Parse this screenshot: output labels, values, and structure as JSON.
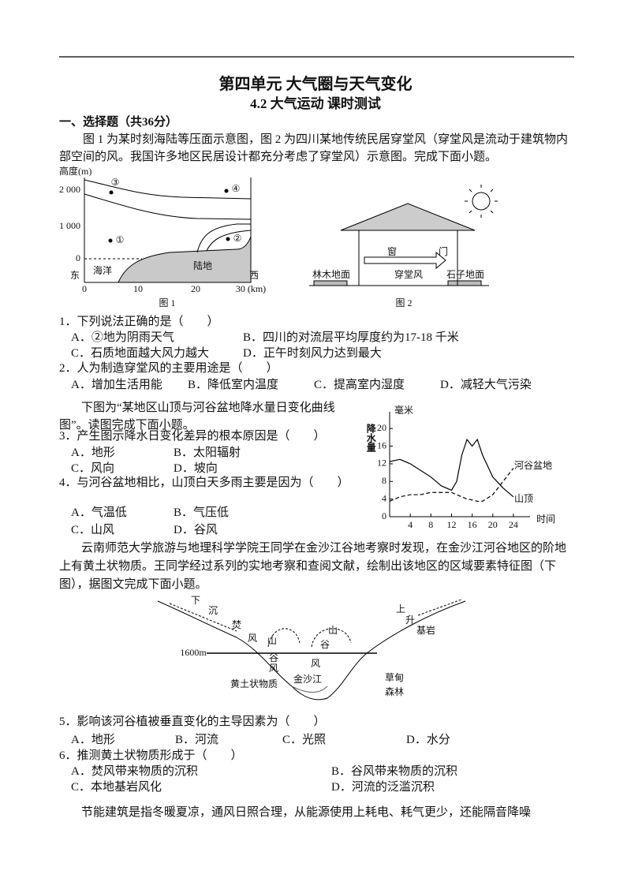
{
  "header": {
    "title": "第四单元  大气圈与天气变化",
    "subtitle": "4.2  大气运动  课时测试"
  },
  "section": "一、选择题（共36分）",
  "passages": [
    "图 1 为某时刻海陆等压面示意图，图 2 为四川某地传统民居穿堂风（穿堂风是流动于建筑物内部空间的风。我国许多地区民居设计都充分考虑了穿堂风）示意图。完成下面小题。",
    "下图为“某地区山顶与河谷盆地降水量日变化曲线图”。读图完成下面小题。",
    "云南师范大学旅游与地理科学学院王同学在金沙江谷地考察时发现，在金沙江河谷地区的阶地上有黄土状物质。王同学经过系列的实地考察和查阅文献，绘制出该地区的区域要素特征图（下图），据图文完成下面小题。",
    "节能建筑是指冬暖夏凉，通风日照合理，从能源使用上耗电、耗气更少，还能隔音降噪"
  ],
  "figure1": {
    "ylabel": "高度(m)",
    "yticks": [
      "2 000",
      "1 000",
      "0"
    ],
    "xticks": [
      "0",
      "10",
      "20",
      "30 (km)"
    ],
    "east": "东",
    "west": "西",
    "sea": "海洋",
    "land": "陆地",
    "points": [
      "①",
      "②",
      "③",
      "④"
    ],
    "caption": "图 1"
  },
  "figure2": {
    "labels": [
      "林木地面",
      "穿堂风",
      "石子地面",
      "窗",
      "门"
    ],
    "caption": "图 2"
  },
  "figure3": {
    "yunit": "毫米",
    "ylabel": "降水量",
    "xlabel": "时间",
    "xlim": [
      0,
      26
    ],
    "ylim": [
      0,
      22
    ],
    "xticks": [
      4,
      8,
      12,
      16,
      20,
      24
    ],
    "yticks": [
      0,
      4,
      8,
      12,
      16,
      20
    ],
    "x": [
      0,
      2,
      4,
      6,
      8,
      10,
      12,
      13,
      14,
      15,
      16,
      17,
      18,
      20,
      22,
      24
    ],
    "series": [
      {
        "name": "河谷盆地",
        "dashed": true,
        "values": [
          3.5,
          4.5,
          5,
          5,
          5.5,
          5.5,
          5.5,
          5,
          4.5,
          4,
          3.8,
          3.5,
          3.5,
          5,
          8,
          11
        ]
      },
      {
        "name": "山顶",
        "dashed": false,
        "values": [
          12.5,
          13,
          12,
          10.5,
          9,
          7,
          6,
          8,
          14,
          17.5,
          16,
          17.5,
          14,
          9,
          6.5,
          4.5
        ]
      }
    ]
  },
  "figure4": {
    "labels": [
      "下",
      "沉",
      "焚",
      "风",
      "山",
      "谷",
      "风",
      "山",
      "谷",
      "风",
      "上",
      "升",
      "基岩",
      "1600m",
      "黄土状物质",
      "金沙江",
      "草甸",
      "森林"
    ]
  },
  "questions": [
    {
      "stem": "1．下列说法正确的是（　　）",
      "options": [
        "A．②地为阴雨天气",
        "B．四川的对流层平均厚度约为17-18 千米",
        "C．石质地面越大风力越大",
        "D．正午时刻风力达到最大"
      ]
    },
    {
      "stem": "2．人为制造穿堂风的主要用途是（　　）",
      "options": [
        "A．增加生活用能",
        "B．降低室内温度",
        "C．提高室内湿度",
        "D．减轻大气污染"
      ]
    },
    {
      "stem": "3．产生图示降水日变化差异的根本原因是（　　）",
      "options": [
        "A．地形",
        "B．太阳辐射",
        "C．风向",
        "D．坡向"
      ]
    },
    {
      "stem": "4．与河谷盆地相比，山顶白天多雨主要是因为（　　）",
      "options": [
        "A．气温低",
        "B．气压低",
        "C．山风",
        "D．谷风"
      ]
    },
    {
      "stem": "5．影响该河谷植被垂直变化的主导因素为（　　）",
      "options": [
        "A．地形",
        "B．河流",
        "C．光照",
        "D．水分"
      ]
    },
    {
      "stem": "6．推测黄土状物质形成于（　　）",
      "options": [
        "A．焚风带来物质的沉积",
        "B．谷风带来物质的沉积",
        "C．本地基岩风化",
        "D．河流的泛滥沉积"
      ]
    }
  ]
}
